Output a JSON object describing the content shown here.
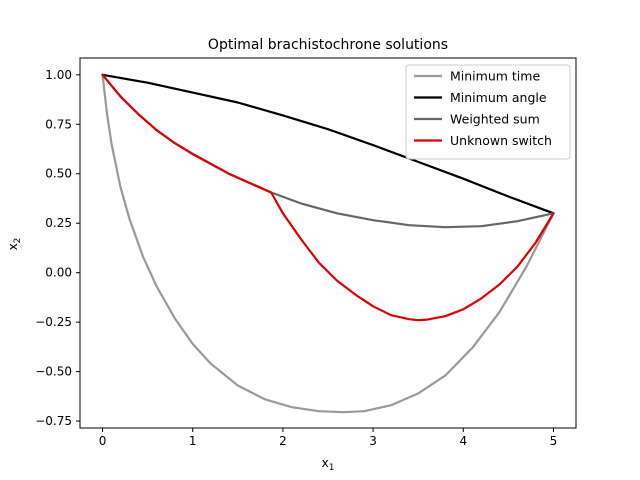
{
  "chart_data": {
    "type": "line",
    "title": "Optimal brachistochrone solutions",
    "xlabel": {
      "base": "x",
      "sub": "1"
    },
    "ylabel": {
      "base": "x",
      "sub": "2"
    },
    "xlim": [
      -0.25,
      5.25
    ],
    "ylim": [
      -0.785,
      1.085
    ],
    "xticks": [
      0,
      1,
      2,
      3,
      4,
      5
    ],
    "xtick_labels": [
      "0",
      "1",
      "2",
      "3",
      "4",
      "5"
    ],
    "yticks": [
      -0.75,
      -0.5,
      -0.25,
      0.0,
      0.25,
      0.5,
      0.75,
      1.0
    ],
    "ytick_labels": [
      "−0.75",
      "−0.50",
      "−0.25",
      "0.00",
      "0.25",
      "0.50",
      "0.75",
      "1.00"
    ],
    "grid": false,
    "legend_position": "top-right",
    "series": [
      {
        "name": "Minimum time",
        "color": "#999999",
        "x": [
          0,
          0.05,
          0.1,
          0.2,
          0.3,
          0.45,
          0.6,
          0.8,
          1.0,
          1.2,
          1.5,
          1.8,
          2.1,
          2.4,
          2.67,
          2.9,
          3.2,
          3.5,
          3.8,
          4.1,
          4.4,
          4.7,
          5.0
        ],
        "y": [
          1.0,
          0.8,
          0.65,
          0.43,
          0.27,
          0.08,
          -0.07,
          -0.23,
          -0.36,
          -0.46,
          -0.57,
          -0.64,
          -0.68,
          -0.7,
          -0.705,
          -0.7,
          -0.67,
          -0.61,
          -0.52,
          -0.38,
          -0.2,
          0.03,
          0.3
        ]
      },
      {
        "name": "Minimum angle",
        "color": "#000000",
        "x": [
          0,
          0.5,
          1.0,
          1.5,
          2.0,
          2.5,
          3.0,
          3.5,
          4.0,
          4.5,
          5.0
        ],
        "y": [
          1.0,
          0.96,
          0.91,
          0.86,
          0.795,
          0.725,
          0.645,
          0.56,
          0.475,
          0.385,
          0.3
        ]
      },
      {
        "name": "Weighted sum",
        "color": "#666666",
        "x": [
          0,
          0.2,
          0.4,
          0.6,
          0.8,
          1.0,
          1.2,
          1.4,
          1.6,
          1.87,
          2.2,
          2.6,
          3.0,
          3.4,
          3.8,
          4.2,
          4.6,
          5.0
        ],
        "y": [
          1.0,
          0.89,
          0.8,
          0.72,
          0.655,
          0.6,
          0.55,
          0.5,
          0.46,
          0.405,
          0.35,
          0.3,
          0.265,
          0.24,
          0.23,
          0.235,
          0.26,
          0.3
        ]
      },
      {
        "name": "Unknown switch",
        "color": "#dd0000",
        "x": [
          0,
          0.2,
          0.4,
          0.6,
          0.8,
          1.0,
          1.2,
          1.4,
          1.6,
          1.87,
          2.0,
          2.2,
          2.4,
          2.6,
          2.8,
          3.0,
          3.2,
          3.4,
          3.5,
          3.6,
          3.8,
          4.0,
          4.2,
          4.4,
          4.6,
          4.8,
          5.0
        ],
        "y": [
          1.0,
          0.89,
          0.8,
          0.72,
          0.655,
          0.6,
          0.55,
          0.5,
          0.46,
          0.405,
          0.3,
          0.17,
          0.05,
          -0.04,
          -0.11,
          -0.17,
          -0.215,
          -0.235,
          -0.24,
          -0.237,
          -0.22,
          -0.185,
          -0.13,
          -0.06,
          0.03,
          0.15,
          0.3
        ]
      }
    ]
  }
}
